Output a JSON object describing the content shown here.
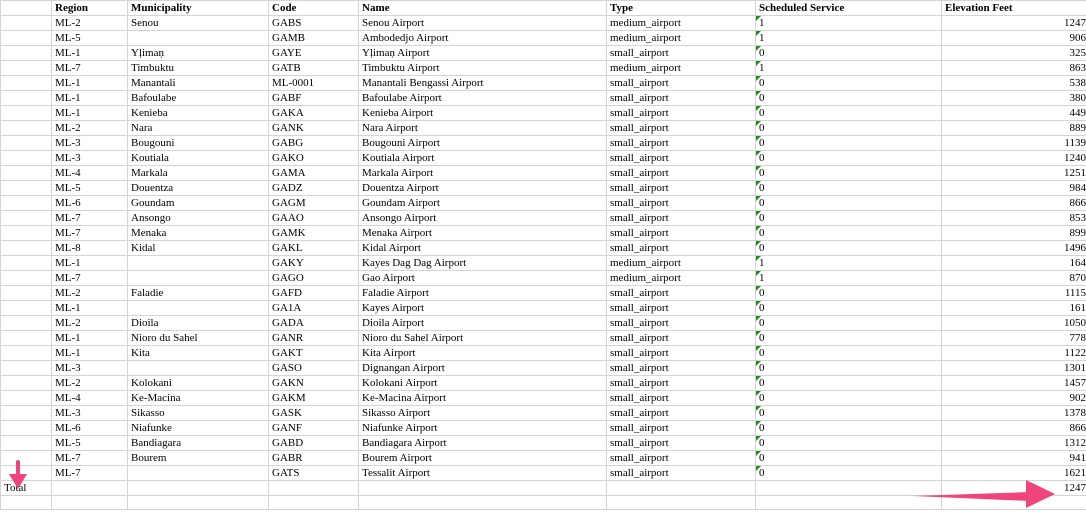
{
  "headers": [
    "",
    "Region",
    "Municipality",
    "Code",
    "Name",
    "Type",
    "Scheduled Service",
    "Elevation Feet"
  ],
  "rows": [
    [
      "ML-2",
      "Senou",
      "GABS",
      "Senou Airport",
      "medium_airport",
      "1",
      "1247"
    ],
    [
      "ML-5",
      "",
      "GAMB",
      "Ambodedjo Airport",
      "medium_airport",
      "1",
      "906"
    ],
    [
      "ML-1",
      "Yḷimaṇ",
      "GAYE",
      "Yḷimaṇ Airport",
      "small_airport",
      "0",
      "325"
    ],
    [
      "ML-7",
      "Timbuktu",
      "GATB",
      "Timbuktu Airport",
      "medium_airport",
      "1",
      "863"
    ],
    [
      "ML-1",
      "Manantali",
      "ML-0001",
      "Manantali Bengassi Airport",
      "small_airport",
      "0",
      "538"
    ],
    [
      "ML-1",
      "Bafoulabe",
      "GABF",
      "Bafoulabe Airport",
      "small_airport",
      "0",
      "380"
    ],
    [
      "ML-1",
      "Kenieba",
      "GAKA",
      "Kenieba Airport",
      "small_airport",
      "0",
      "449"
    ],
    [
      "ML-2",
      "Nara",
      "GANK",
      "Nara Airport",
      "small_airport",
      "0",
      "889"
    ],
    [
      "ML-3",
      "Bougouni",
      "GABG",
      "Bougouni Airport",
      "small_airport",
      "0",
      "1139"
    ],
    [
      "ML-3",
      "Koutiala",
      "GAKO",
      "Koutiala Airport",
      "small_airport",
      "0",
      "1240"
    ],
    [
      "ML-4",
      "Markala",
      "GAMA",
      "Markala Airport",
      "small_airport",
      "0",
      "1251"
    ],
    [
      "ML-5",
      "Douentza",
      "GADZ",
      "Douentza Airport",
      "small_airport",
      "0",
      "984"
    ],
    [
      "ML-6",
      "Goundam",
      "GAGM",
      "Goundam Airport",
      "small_airport",
      "0",
      "866"
    ],
    [
      "ML-7",
      "Ansongo",
      "GAAO",
      "Ansongo Airport",
      "small_airport",
      "0",
      "853"
    ],
    [
      "ML-7",
      "Menaka",
      "GAMK",
      "Menaka Airport",
      "small_airport",
      "0",
      "899"
    ],
    [
      "ML-8",
      "Kidal",
      "GAKL",
      "Kidal Airport",
      "small_airport",
      "0",
      "1496"
    ],
    [
      "ML-1",
      "",
      "GAKY",
      "Kayes Dag Dag Airport",
      "medium_airport",
      "1",
      "164"
    ],
    [
      "ML-7",
      "",
      "GAGO",
      "Gao Airport",
      "medium_airport",
      "1",
      "870"
    ],
    [
      "ML-2",
      "Faladie",
      "GAFD",
      "Faladie Airport",
      "small_airport",
      "0",
      "1115"
    ],
    [
      "ML-1",
      "",
      "GA1A",
      "Kayes Airport",
      "small_airport",
      "0",
      "161"
    ],
    [
      "ML-2",
      "Dioila",
      "GADA",
      "Dioila Airport",
      "small_airport",
      "0",
      "1050"
    ],
    [
      "ML-1",
      "Nioro du Sahel",
      "GANR",
      "Nioro du Sahel Airport",
      "small_airport",
      "0",
      "778"
    ],
    [
      "ML-1",
      "Kita",
      "GAKT",
      "Kita Airport",
      "small_airport",
      "0",
      "1122"
    ],
    [
      "ML-3",
      "",
      "GASO",
      "Dignangan Airport",
      "small_airport",
      "0",
      "1301"
    ],
    [
      "ML-2",
      "Kolokani",
      "GAKN",
      "Kolokani Airport",
      "small_airport",
      "0",
      "1457"
    ],
    [
      "ML-4",
      "Ke-Macina",
      "GAKM",
      "Ke-Macina Airport",
      "small_airport",
      "0",
      "902"
    ],
    [
      "ML-3",
      "Sikasso",
      "GASK",
      "Sikasso Airport",
      "small_airport",
      "0",
      "1378"
    ],
    [
      "ML-6",
      "Niafunke",
      "GANF",
      "Niafunke Airport",
      "small_airport",
      "0",
      "866"
    ],
    [
      "ML-5",
      "Bandiagara",
      "GABD",
      "Bandiagara Airport",
      "small_airport",
      "0",
      "1312"
    ],
    [
      "ML-7",
      "Bourem",
      "GABR",
      "Bourem Airport",
      "small_airport",
      "0",
      "941"
    ],
    [
      "ML-7",
      "",
      "GATS",
      "Tessalit Airport",
      "small_airport",
      "0",
      "1621"
    ]
  ],
  "total": {
    "label": "Total",
    "value": "1247"
  },
  "colors": {
    "arrow": "#f0457a",
    "flag": "#1a8f1a",
    "grid": "#d4d4d4"
  }
}
